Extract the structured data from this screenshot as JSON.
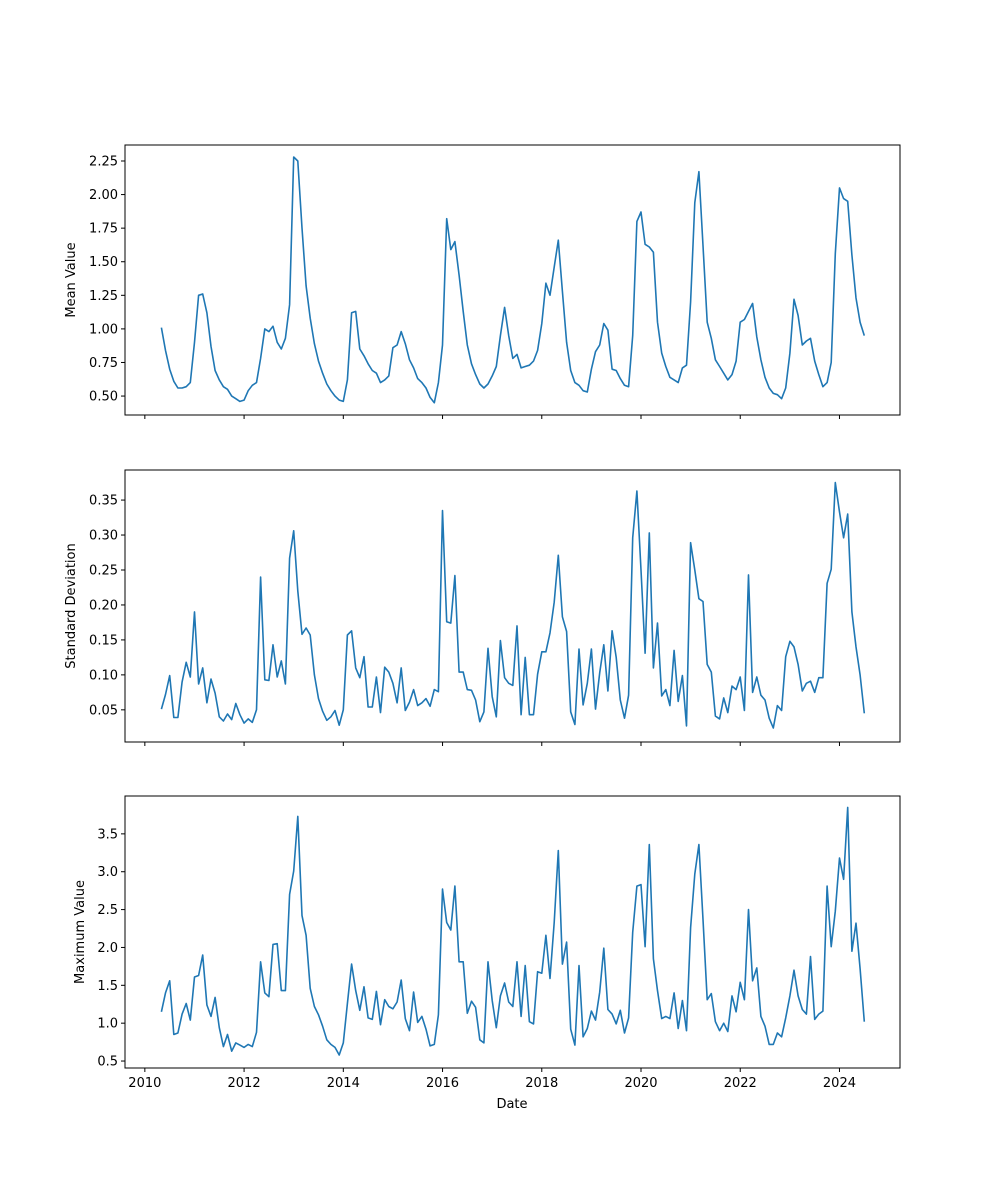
{
  "chart_data": [
    {
      "type": "line",
      "title": "",
      "xlabel": "",
      "ylabel": "Mean Value",
      "x_start": "2010-05",
      "x_frequency": "monthly",
      "xlim": [
        2009.6,
        2025.22
      ],
      "ylim": [
        0.359,
        2.369
      ],
      "grid": false,
      "color": "#1f77b4",
      "xticks": [
        2010,
        2012,
        2014,
        2016,
        2018,
        2020,
        2022,
        2024
      ],
      "xtick_labels_visible": false,
      "yticks": [
        0.5,
        0.75,
        1.0,
        1.25,
        1.5,
        1.75,
        2.0,
        2.25
      ],
      "ytick_labels": [
        "0.50",
        "0.75",
        "1.00",
        "1.25",
        "1.50",
        "1.75",
        "2.00",
        "2.25"
      ],
      "values": [
        1.01,
        0.84,
        0.7,
        0.61,
        0.56,
        0.56,
        0.57,
        0.6,
        0.9,
        1.25,
        1.26,
        1.12,
        0.87,
        0.69,
        0.62,
        0.57,
        0.55,
        0.5,
        0.48,
        0.46,
        0.47,
        0.54,
        0.58,
        0.6,
        0.78,
        1.0,
        0.98,
        1.02,
        0.9,
        0.85,
        0.93,
        1.18,
        2.28,
        2.25,
        1.75,
        1.32,
        1.08,
        0.89,
        0.76,
        0.67,
        0.59,
        0.54,
        0.5,
        0.47,
        0.46,
        0.62,
        1.12,
        1.13,
        0.85,
        0.8,
        0.74,
        0.69,
        0.67,
        0.6,
        0.62,
        0.65,
        0.86,
        0.88,
        0.98,
        0.89,
        0.77,
        0.71,
        0.63,
        0.6,
        0.56,
        0.49,
        0.45,
        0.6,
        0.88,
        1.82,
        1.59,
        1.65,
        1.4,
        1.13,
        0.88,
        0.74,
        0.66,
        0.59,
        0.56,
        0.59,
        0.65,
        0.72,
        0.95,
        1.16,
        0.95,
        0.78,
        0.81,
        0.71,
        0.72,
        0.73,
        0.76,
        0.84,
        1.04,
        1.34,
        1.25,
        1.46,
        1.66,
        1.28,
        0.9,
        0.69,
        0.6,
        0.58,
        0.54,
        0.53,
        0.7,
        0.83,
        0.88,
        1.04,
        0.99,
        0.7,
        0.69,
        0.63,
        0.58,
        0.57,
        0.95,
        1.8,
        1.87,
        1.63,
        1.61,
        1.57,
        1.05,
        0.82,
        0.72,
        0.64,
        0.62,
        0.6,
        0.71,
        0.73,
        1.2,
        1.94,
        2.17,
        1.62,
        1.05,
        0.93,
        0.77,
        0.72,
        0.67,
        0.62,
        0.66,
        0.76,
        1.05,
        1.07,
        1.13,
        1.19,
        0.94,
        0.77,
        0.64,
        0.56,
        0.52,
        0.51,
        0.48,
        0.56,
        0.82,
        1.22,
        1.1,
        0.88,
        0.91,
        0.93,
        0.76,
        0.66,
        0.57,
        0.6,
        0.75,
        1.56,
        2.05,
        1.97,
        1.95,
        1.55,
        1.23,
        1.05,
        0.95
      ]
    },
    {
      "type": "line",
      "title": "",
      "xlabel": "",
      "ylabel": "Standard Deviation",
      "x_start": "2010-05",
      "x_frequency": "monthly",
      "xlim": [
        2009.6,
        2025.22
      ],
      "ylim": [
        0.004,
        0.393
      ],
      "grid": false,
      "color": "#1f77b4",
      "xticks": [
        2010,
        2012,
        2014,
        2016,
        2018,
        2020,
        2022,
        2024
      ],
      "xtick_labels_visible": false,
      "yticks": [
        0.05,
        0.1,
        0.15,
        0.2,
        0.25,
        0.3,
        0.35
      ],
      "ytick_labels": [
        "0.05",
        "0.10",
        "0.15",
        "0.20",
        "0.25",
        "0.30",
        "0.35"
      ],
      "values": [
        0.051,
        0.072,
        0.099,
        0.039,
        0.039,
        0.09,
        0.118,
        0.097,
        0.19,
        0.087,
        0.11,
        0.06,
        0.094,
        0.074,
        0.04,
        0.034,
        0.044,
        0.036,
        0.059,
        0.043,
        0.031,
        0.037,
        0.032,
        0.05,
        0.24,
        0.093,
        0.092,
        0.143,
        0.097,
        0.12,
        0.087,
        0.267,
        0.306,
        0.22,
        0.158,
        0.167,
        0.157,
        0.1,
        0.066,
        0.048,
        0.035,
        0.04,
        0.049,
        0.028,
        0.05,
        0.157,
        0.163,
        0.11,
        0.096,
        0.126,
        0.054,
        0.054,
        0.097,
        0.046,
        0.111,
        0.104,
        0.088,
        0.06,
        0.11,
        0.049,
        0.061,
        0.079,
        0.056,
        0.06,
        0.066,
        0.055,
        0.079,
        0.076,
        0.335,
        0.176,
        0.174,
        0.242,
        0.104,
        0.104,
        0.079,
        0.078,
        0.064,
        0.033,
        0.047,
        0.138,
        0.069,
        0.04,
        0.149,
        0.096,
        0.088,
        0.085,
        0.17,
        0.043,
        0.125,
        0.043,
        0.043,
        0.101,
        0.133,
        0.133,
        0.16,
        0.204,
        0.271,
        0.183,
        0.162,
        0.047,
        0.029,
        0.137,
        0.057,
        0.088,
        0.137,
        0.051,
        0.103,
        0.143,
        0.077,
        0.163,
        0.125,
        0.064,
        0.038,
        0.071,
        0.296,
        0.363,
        0.25,
        0.131,
        0.303,
        0.11,
        0.174,
        0.07,
        0.079,
        0.056,
        0.135,
        0.062,
        0.099,
        0.027,
        0.289,
        0.25,
        0.209,
        0.205,
        0.115,
        0.104,
        0.041,
        0.037,
        0.067,
        0.046,
        0.084,
        0.079,
        0.097,
        0.049,
        0.243,
        0.075,
        0.097,
        0.071,
        0.064,
        0.038,
        0.024,
        0.056,
        0.049,
        0.126,
        0.148,
        0.14,
        0.115,
        0.077,
        0.088,
        0.091,
        0.075,
        0.096,
        0.096,
        0.231,
        0.251,
        0.375,
        0.333,
        0.296,
        0.33,
        0.19,
        0.14,
        0.1,
        0.045
      ]
    },
    {
      "type": "line",
      "title": "",
      "xlabel": "Date",
      "ylabel": "Maximum Value",
      "x_start": "2010-05",
      "x_frequency": "monthly",
      "xlim": [
        2009.6,
        2025.22
      ],
      "ylim": [
        0.408,
        4.0
      ],
      "grid": false,
      "color": "#1f77b4",
      "xticks": [
        2010,
        2012,
        2014,
        2016,
        2018,
        2020,
        2022,
        2024
      ],
      "xtick_labels": [
        "2010",
        "2012",
        "2014",
        "2016",
        "2018",
        "2020",
        "2022",
        "2024"
      ],
      "xtick_labels_visible": true,
      "yticks": [
        0.5,
        1.0,
        1.5,
        2.0,
        2.5,
        3.0,
        3.5
      ],
      "ytick_labels": [
        "0.5",
        "1.0",
        "1.5",
        "2.0",
        "2.5",
        "3.0",
        "3.5"
      ],
      "values": [
        1.15,
        1.4,
        1.56,
        0.85,
        0.87,
        1.12,
        1.26,
        1.04,
        1.61,
        1.63,
        1.9,
        1.24,
        1.09,
        1.34,
        0.94,
        0.69,
        0.85,
        0.63,
        0.74,
        0.71,
        0.68,
        0.72,
        0.69,
        0.88,
        1.81,
        1.4,
        1.35,
        2.04,
        2.05,
        1.43,
        1.43,
        2.7,
        3.01,
        3.73,
        2.42,
        2.16,
        1.46,
        1.22,
        1.11,
        0.96,
        0.78,
        0.72,
        0.68,
        0.58,
        0.74,
        1.26,
        1.78,
        1.43,
        1.17,
        1.48,
        1.07,
        1.05,
        1.42,
        0.98,
        1.31,
        1.22,
        1.19,
        1.28,
        1.57,
        1.06,
        0.9,
        1.41,
        1.01,
        1.09,
        0.92,
        0.7,
        0.72,
        1.11,
        2.77,
        2.33,
        2.23,
        2.81,
        1.81,
        1.81,
        1.13,
        1.29,
        1.21,
        0.78,
        0.74,
        1.81,
        1.3,
        0.94,
        1.36,
        1.53,
        1.28,
        1.22,
        1.81,
        1.09,
        1.76,
        1.02,
        0.99,
        1.68,
        1.66,
        2.16,
        1.59,
        2.33,
        3.28,
        1.78,
        2.07,
        0.92,
        0.71,
        1.76,
        0.82,
        0.93,
        1.16,
        1.04,
        1.41,
        1.99,
        1.18,
        1.12,
        0.99,
        1.17,
        0.87,
        1.07,
        2.2,
        2.81,
        2.83,
        2.01,
        3.36,
        1.85,
        1.43,
        1.06,
        1.09,
        1.06,
        1.4,
        0.93,
        1.3,
        0.9,
        2.26,
        2.97,
        3.36,
        2.37,
        1.31,
        1.39,
        1.02,
        0.9,
        1.0,
        0.89,
        1.36,
        1.15,
        1.54,
        1.31,
        2.5,
        1.56,
        1.73,
        1.09,
        0.96,
        0.72,
        0.72,
        0.87,
        0.82,
        1.07,
        1.36,
        1.7,
        1.36,
        1.18,
        1.12,
        1.88,
        1.05,
        1.12,
        1.16,
        2.81,
        2.01,
        2.48,
        3.18,
        2.9,
        3.85,
        1.95,
        2.32,
        1.72,
        1.02
      ]
    }
  ]
}
